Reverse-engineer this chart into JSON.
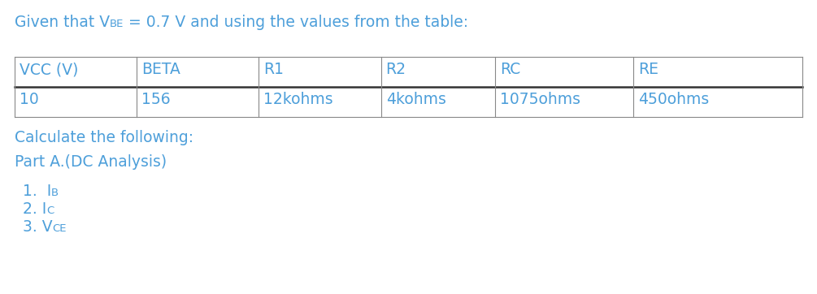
{
  "title_prefix": "Given that V",
  "title_sub": "BE",
  "title_suffix": " = 0.7 V and using the values from the table:",
  "table_headers": [
    "VCC (V)",
    "BETA",
    "R1",
    "R2",
    "RC",
    "RE"
  ],
  "table_values": [
    "10",
    "156",
    "12kohms",
    "4kohms",
    "1075ohms",
    "450ohms"
  ],
  "calc_text": "Calculate the following:",
  "part_text": "Part A.(DC Analysis)",
  "list_items": [
    {
      "prefix": "1.  I",
      "sub": "B"
    },
    {
      "prefix": "2. I",
      "sub": "C"
    },
    {
      "prefix": "3. V",
      "sub": "CE"
    }
  ],
  "text_color": "#4d9fda",
  "bg_color": "#ffffff",
  "font_size": 13.5,
  "sub_font_size": 9.5,
  "table_line_color": "#888888",
  "table_sep_color": "#333333"
}
